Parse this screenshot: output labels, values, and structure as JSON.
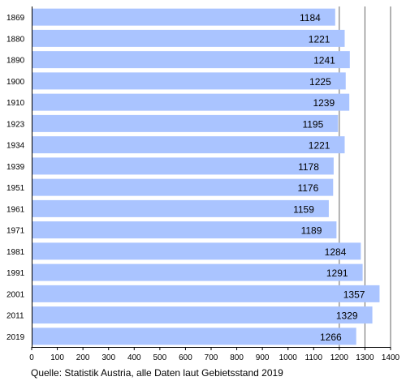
{
  "chart_data": {
    "type": "bar",
    "orientation": "horizontal",
    "categories": [
      "1869",
      "1880",
      "1890",
      "1900",
      "1910",
      "1923",
      "1934",
      "1939",
      "1951",
      "1961",
      "1971",
      "1981",
      "1991",
      "2001",
      "2011",
      "2019"
    ],
    "values": [
      1184,
      1221,
      1241,
      1225,
      1239,
      1195,
      1221,
      1178,
      1176,
      1159,
      1189,
      1284,
      1291,
      1357,
      1329,
      1266
    ],
    "xlim": [
      0,
      1400
    ],
    "x_ticks": [
      0,
      100,
      200,
      300,
      400,
      500,
      600,
      700,
      800,
      900,
      1000,
      1100,
      1200,
      1300,
      1400
    ],
    "grid": "vertical lines at 1200, 1300, 1400",
    "data_labels": true,
    "title": "",
    "xlabel": "",
    "ylabel": "",
    "source": "Quelle: Statistik Austria, alle Daten laut Gebietsstand 2019"
  },
  "colors": {
    "bar": "#aac4ff",
    "grid": "#666666",
    "axis": "#000000",
    "text": "#000000"
  }
}
